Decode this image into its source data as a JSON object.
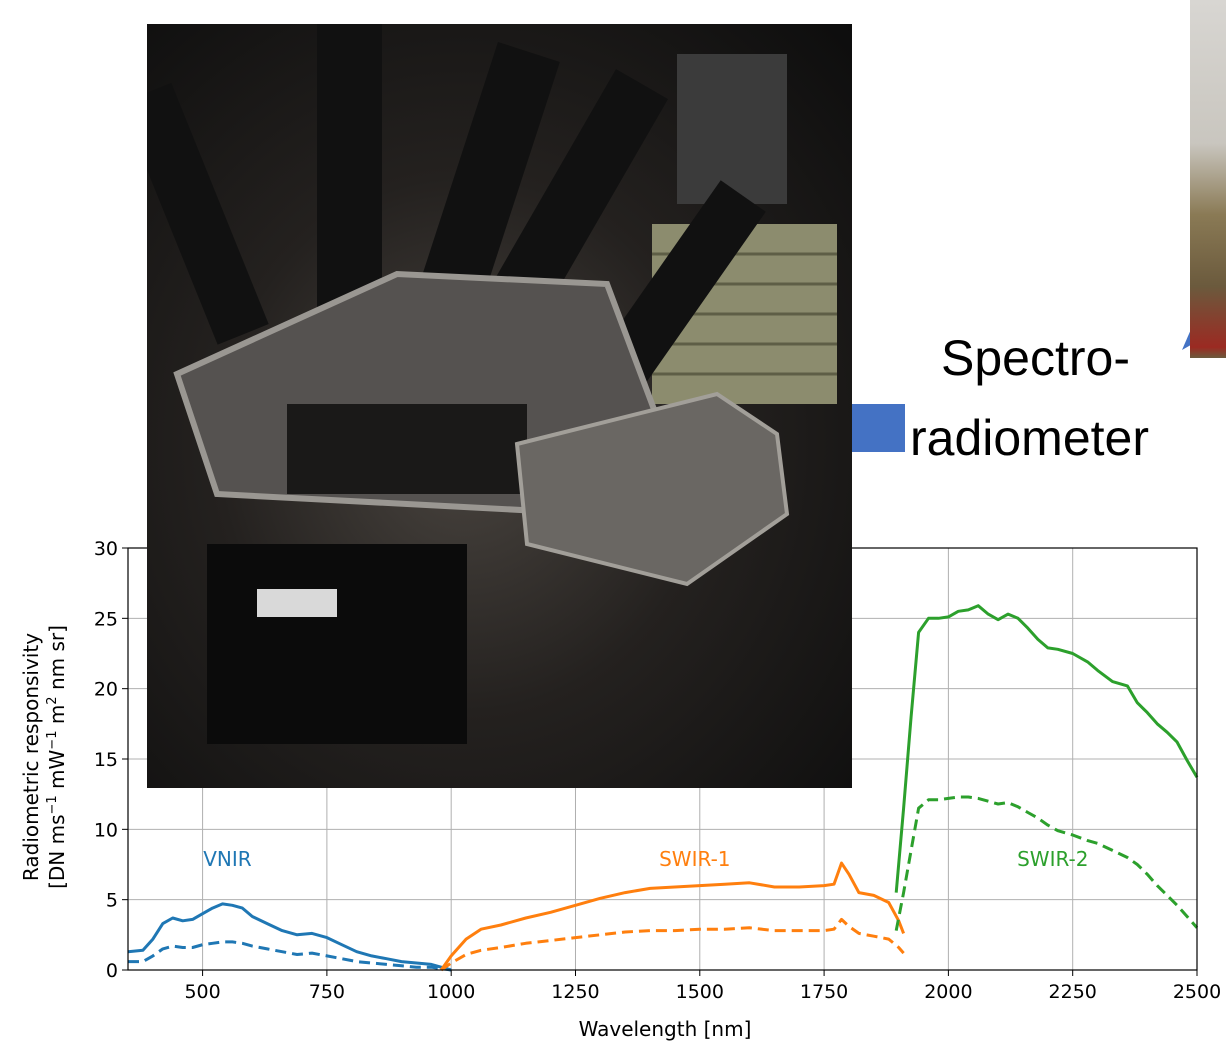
{
  "callout": {
    "line1": "Spectro-",
    "line2": "radiometer",
    "arrow_color": "#4472C4"
  },
  "photos": [
    {
      "name": "goniometer-setup-photo",
      "subject": "multi-angle spectroradiometer measurement rig"
    },
    {
      "name": "field-photo-partial",
      "subject": "partially visible photo at right edge"
    }
  ],
  "chart_data": {
    "type": "line",
    "xlabel": "Wavelength [nm]",
    "ylabel_line1": "Radiometric responsivity",
    "ylabel_line2_parts": {
      "a": "[DN ms",
      "b": "−1",
      "c": " mW",
      "d": "−1",
      "e": " m",
      "f": "2",
      "g": " nm sr]"
    },
    "xlim": [
      350,
      2500
    ],
    "ylim": [
      0,
      30
    ],
    "xticks": [
      500,
      750,
      1000,
      1250,
      1500,
      1750,
      2000,
      2250,
      2500
    ],
    "yticks": [
      0,
      5,
      10,
      15,
      20,
      25,
      30
    ],
    "grid": true,
    "annotations": [
      {
        "text": "VNIR",
        "x": 550,
        "y": 7.4,
        "color": "#1f77b4"
      },
      {
        "text": "SWIR-1",
        "x": 1490,
        "y": 7.4,
        "color": "#ff7f0e"
      },
      {
        "text": "SWIR-2",
        "x": 2210,
        "y": 7.4,
        "color": "#2ca02c"
      }
    ],
    "series": [
      {
        "band": "VNIR",
        "style": "solid",
        "color": "#1f77b4",
        "x": [
          350,
          380,
          400,
          420,
          440,
          460,
          480,
          500,
          520,
          540,
          560,
          580,
          600,
          630,
          660,
          690,
          720,
          750,
          780,
          810,
          840,
          870,
          900,
          930,
          960,
          980,
          1000
        ],
        "y": [
          1.3,
          1.4,
          2.2,
          3.3,
          3.7,
          3.5,
          3.6,
          4.0,
          4.4,
          4.7,
          4.6,
          4.4,
          3.8,
          3.3,
          2.8,
          2.5,
          2.6,
          2.3,
          1.8,
          1.3,
          1.0,
          0.8,
          0.6,
          0.5,
          0.4,
          0.2,
          0.0
        ]
      },
      {
        "band": "VNIR",
        "style": "dashed",
        "color": "#1f77b4",
        "x": [
          350,
          380,
          400,
          420,
          440,
          460,
          480,
          500,
          520,
          540,
          560,
          580,
          600,
          630,
          660,
          690,
          720,
          750,
          780,
          810,
          840,
          870,
          900,
          930,
          960,
          980,
          1000
        ],
        "y": [
          0.6,
          0.6,
          1.0,
          1.5,
          1.7,
          1.6,
          1.6,
          1.8,
          1.9,
          2.0,
          2.0,
          1.9,
          1.7,
          1.5,
          1.3,
          1.1,
          1.2,
          1.0,
          0.8,
          0.6,
          0.5,
          0.4,
          0.3,
          0.2,
          0.2,
          0.1,
          0.0
        ]
      },
      {
        "band": "SWIR-1",
        "style": "solid",
        "color": "#ff7f0e",
        "x": [
          980,
          1000,
          1030,
          1060,
          1100,
          1150,
          1200,
          1250,
          1300,
          1350,
          1400,
          1450,
          1500,
          1550,
          1600,
          1650,
          1700,
          1750,
          1770,
          1785,
          1800,
          1820,
          1850,
          1880,
          1900,
          1910
        ],
        "y": [
          0.0,
          1.0,
          2.2,
          2.9,
          3.2,
          3.7,
          4.1,
          4.6,
          5.1,
          5.5,
          5.8,
          5.9,
          6.0,
          6.1,
          6.2,
          5.9,
          5.9,
          6.0,
          6.1,
          7.6,
          6.8,
          5.5,
          5.3,
          4.8,
          3.5,
          2.6
        ]
      },
      {
        "band": "SWIR-1",
        "style": "dashed",
        "color": "#ff7f0e",
        "x": [
          980,
          1000,
          1030,
          1060,
          1100,
          1150,
          1200,
          1250,
          1300,
          1350,
          1400,
          1450,
          1500,
          1550,
          1600,
          1650,
          1700,
          1750,
          1770,
          1785,
          1800,
          1820,
          1850,
          1880,
          1900,
          1910
        ],
        "y": [
          0.0,
          0.5,
          1.1,
          1.4,
          1.6,
          1.9,
          2.1,
          2.3,
          2.5,
          2.7,
          2.8,
          2.8,
          2.9,
          2.9,
          3.0,
          2.8,
          2.8,
          2.8,
          2.9,
          3.6,
          3.1,
          2.6,
          2.4,
          2.2,
          1.6,
          1.2
        ]
      },
      {
        "band": "SWIR-2",
        "style": "solid",
        "color": "#2ca02c",
        "x": [
          1895,
          1910,
          1925,
          1940,
          1960,
          1980,
          2000,
          2020,
          2040,
          2060,
          2080,
          2100,
          2120,
          2140,
          2160,
          2180,
          2200,
          2220,
          2250,
          2280,
          2300,
          2330,
          2360,
          2380,
          2400,
          2420,
          2440,
          2460,
          2480,
          2500
        ],
        "y": [
          5.5,
          11.5,
          18.0,
          24.0,
          25.0,
          25.0,
          25.1,
          25.5,
          25.6,
          25.9,
          25.3,
          24.9,
          25.3,
          25.0,
          24.3,
          23.5,
          22.9,
          22.8,
          22.5,
          21.9,
          21.3,
          20.5,
          20.2,
          19.0,
          18.3,
          17.5,
          16.9,
          16.2,
          14.9,
          13.7
        ]
      },
      {
        "band": "SWIR-2",
        "style": "dashed",
        "color": "#2ca02c",
        "x": [
          1895,
          1910,
          1925,
          1940,
          1960,
          1980,
          2000,
          2020,
          2040,
          2060,
          2080,
          2100,
          2120,
          2140,
          2160,
          2180,
          2200,
          2220,
          2250,
          2280,
          2300,
          2330,
          2360,
          2380,
          2400,
          2420,
          2440,
          2460,
          2480,
          2500
        ],
        "y": [
          2.8,
          5.5,
          8.5,
          11.5,
          12.1,
          12.1,
          12.2,
          12.3,
          12.3,
          12.2,
          12.0,
          11.8,
          11.9,
          11.6,
          11.2,
          10.8,
          10.3,
          9.9,
          9.6,
          9.2,
          9.0,
          8.5,
          8.0,
          7.5,
          6.8,
          6.0,
          5.3,
          4.6,
          3.8,
          3.0
        ]
      }
    ]
  }
}
